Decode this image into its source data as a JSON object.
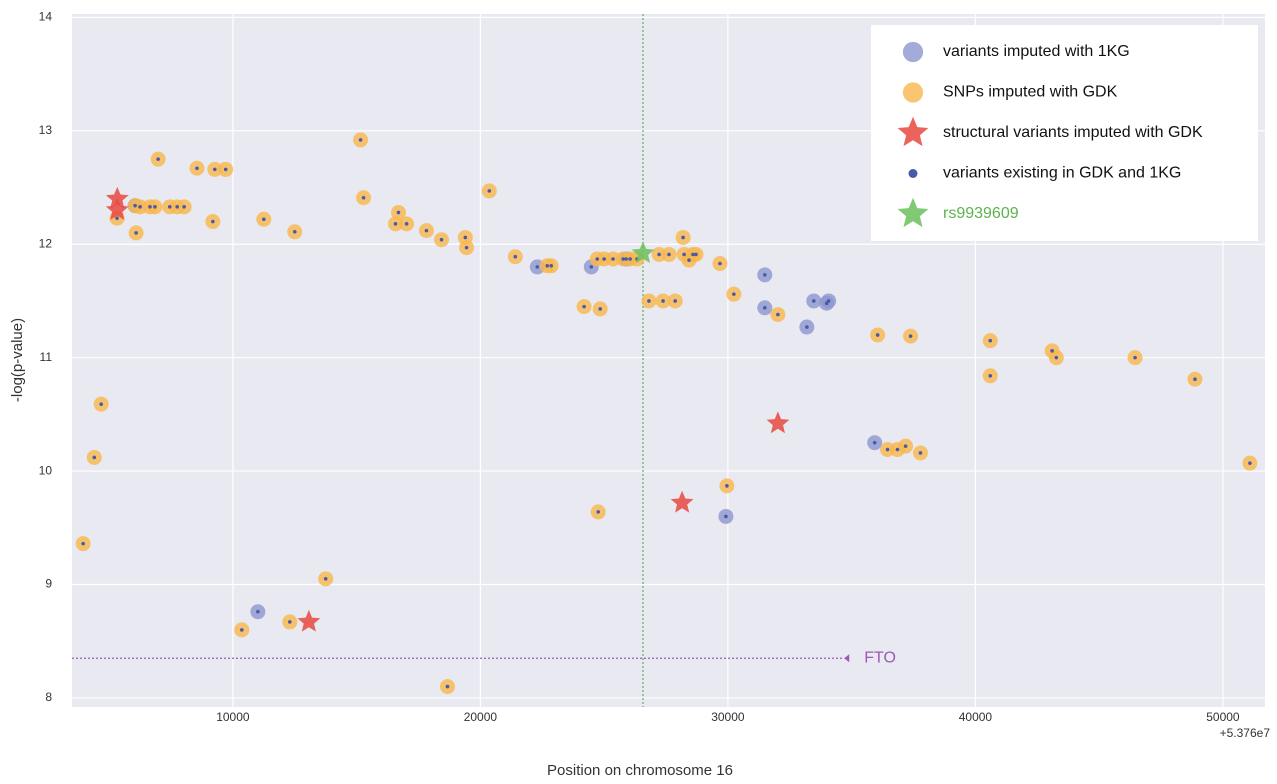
{
  "chart_data": {
    "type": "scatter",
    "x_label": "Position on chromosome 16",
    "y_label": "-log(p-value)",
    "x_offset_label": "+5.376e7",
    "xlim": [
      3500,
      51700
    ],
    "ylim": [
      7.92,
      14.03
    ],
    "xticks": [
      10000,
      20000,
      30000,
      40000,
      50000
    ],
    "yticks": [
      8,
      9,
      10,
      11,
      12,
      13,
      14
    ],
    "grid": true,
    "legend": "upper right",
    "annotations": [
      {
        "text": "FTO",
        "y": 8.35,
        "x_end": 34700,
        "color": "#9b59b6"
      }
    ],
    "series": [
      {
        "name": "variants imputed with 1KG",
        "marker": "circle",
        "color": "#8c96cf",
        "x": [
          6050,
          11010,
          22300,
          24480,
          25890,
          29920,
          31490,
          31490,
          33190,
          33470,
          33990,
          34070,
          35930
        ],
        "values": [
          12.34,
          8.76,
          11.8,
          11.8,
          11.87,
          9.6,
          11.73,
          11.44,
          11.27,
          11.5,
          11.48,
          11.5,
          10.25
        ]
      },
      {
        "name": "SNPs imputed with GDK",
        "marker": "circle",
        "color": "#f8b64c",
        "x": [
          3950,
          4400,
          4680,
          5320,
          6050,
          6090,
          6250,
          6650,
          6850,
          7450,
          7750,
          8030,
          6980,
          8550,
          9270,
          9710,
          9190,
          10360,
          11250,
          12300,
          12500,
          13750,
          15160,
          15280,
          16570,
          16690,
          17020,
          17820,
          18430,
          18670,
          19390,
          19440,
          20360,
          21410,
          22700,
          22860,
          24190,
          24720,
          24760,
          24840,
          25000,
          25360,
          25770,
          26050,
          26330,
          26810,
          27220,
          27620,
          28230,
          27380,
          27870,
          28190,
          28430,
          28590,
          28710,
          29680,
          29960,
          30240,
          32020,
          36050,
          36450,
          36850,
          37180,
          37380,
          37780,
          40600,
          40600,
          43100,
          43270,
          46450,
          48870,
          51090
        ],
        "values": [
          9.36,
          10.12,
          10.59,
          12.23,
          12.34,
          12.1,
          12.33,
          12.33,
          12.33,
          12.33,
          12.33,
          12.33,
          12.75,
          12.67,
          12.66,
          12.66,
          12.2,
          8.6,
          12.22,
          8.67,
          12.11,
          9.05,
          12.92,
          12.41,
          12.18,
          12.28,
          12.18,
          12.12,
          12.04,
          8.1,
          12.06,
          11.97,
          12.47,
          11.89,
          11.81,
          11.81,
          11.45,
          11.87,
          9.64,
          11.43,
          11.87,
          11.87,
          11.87,
          11.87,
          11.87,
          11.5,
          11.91,
          11.91,
          11.91,
          11.5,
          11.5,
          12.06,
          11.86,
          11.91,
          11.91,
          11.83,
          9.87,
          11.56,
          11.38,
          11.2,
          10.19,
          10.19,
          10.22,
          11.19,
          10.16,
          11.15,
          10.84,
          11.06,
          11.0,
          11.0,
          10.81,
          10.07
        ]
      },
      {
        "name": "structural variants imputed with GDK",
        "marker": "star",
        "color": "#e8483f",
        "x": [
          5330,
          5330,
          13070,
          28150,
          32020
        ],
        "values": [
          12.4,
          12.3,
          8.67,
          9.72,
          10.42
        ]
      },
      {
        "name": "variants existing in GDK and 1KG",
        "marker": "dot",
        "color": "#4a5aa8",
        "x": [
          6050,
          11010,
          22300,
          24480,
          25890,
          29920,
          31490,
          31490,
          33190,
          33470,
          33990,
          34070,
          35930,
          3950,
          4400,
          4680,
          5320,
          6090,
          6250,
          6650,
          6850,
          7450,
          7750,
          8030,
          6980,
          8550,
          9270,
          9710,
          9190,
          10360,
          11250,
          12300,
          12500,
          13750,
          15160,
          15280,
          16570,
          16690,
          17020,
          17820,
          18430,
          18670,
          19390,
          19440,
          20360,
          21410,
          22700,
          22860,
          24190,
          24720,
          24760,
          24840,
          25000,
          25360,
          25770,
          26050,
          26330,
          26810,
          27220,
          27620,
          28230,
          27380,
          27870,
          28190,
          28430,
          28590,
          28710,
          29680,
          29960,
          30240,
          32020,
          36050,
          36450,
          36850,
          37180,
          37380,
          37780,
          40600,
          40600,
          43100,
          43270,
          46450,
          48870,
          51090
        ],
        "values": [
          12.34,
          8.76,
          11.8,
          11.8,
          11.87,
          9.6,
          11.73,
          11.44,
          11.27,
          11.5,
          11.48,
          11.5,
          10.25,
          9.36,
          10.12,
          10.59,
          12.23,
          12.1,
          12.33,
          12.33,
          12.33,
          12.33,
          12.33,
          12.33,
          12.75,
          12.67,
          12.66,
          12.66,
          12.2,
          8.6,
          12.22,
          8.67,
          12.11,
          9.05,
          12.92,
          12.41,
          12.18,
          12.28,
          12.18,
          12.12,
          12.04,
          8.1,
          12.06,
          11.97,
          12.47,
          11.89,
          11.81,
          11.81,
          11.45,
          11.87,
          9.64,
          11.43,
          11.87,
          11.87,
          11.87,
          11.87,
          11.87,
          11.5,
          11.91,
          11.91,
          11.91,
          11.5,
          11.5,
          12.06,
          11.86,
          11.91,
          11.91,
          11.83,
          9.87,
          11.56,
          11.38,
          11.2,
          10.19,
          10.19,
          10.22,
          11.19,
          10.16,
          11.15,
          10.84,
          11.06,
          11.0,
          11.0,
          10.81,
          10.07
        ]
      },
      {
        "name": "rs9939609",
        "marker": "star",
        "color": "#6cc05e",
        "label_color": "#5cb34e",
        "x": [
          26570
        ],
        "values": [
          11.92
        ]
      }
    ]
  }
}
